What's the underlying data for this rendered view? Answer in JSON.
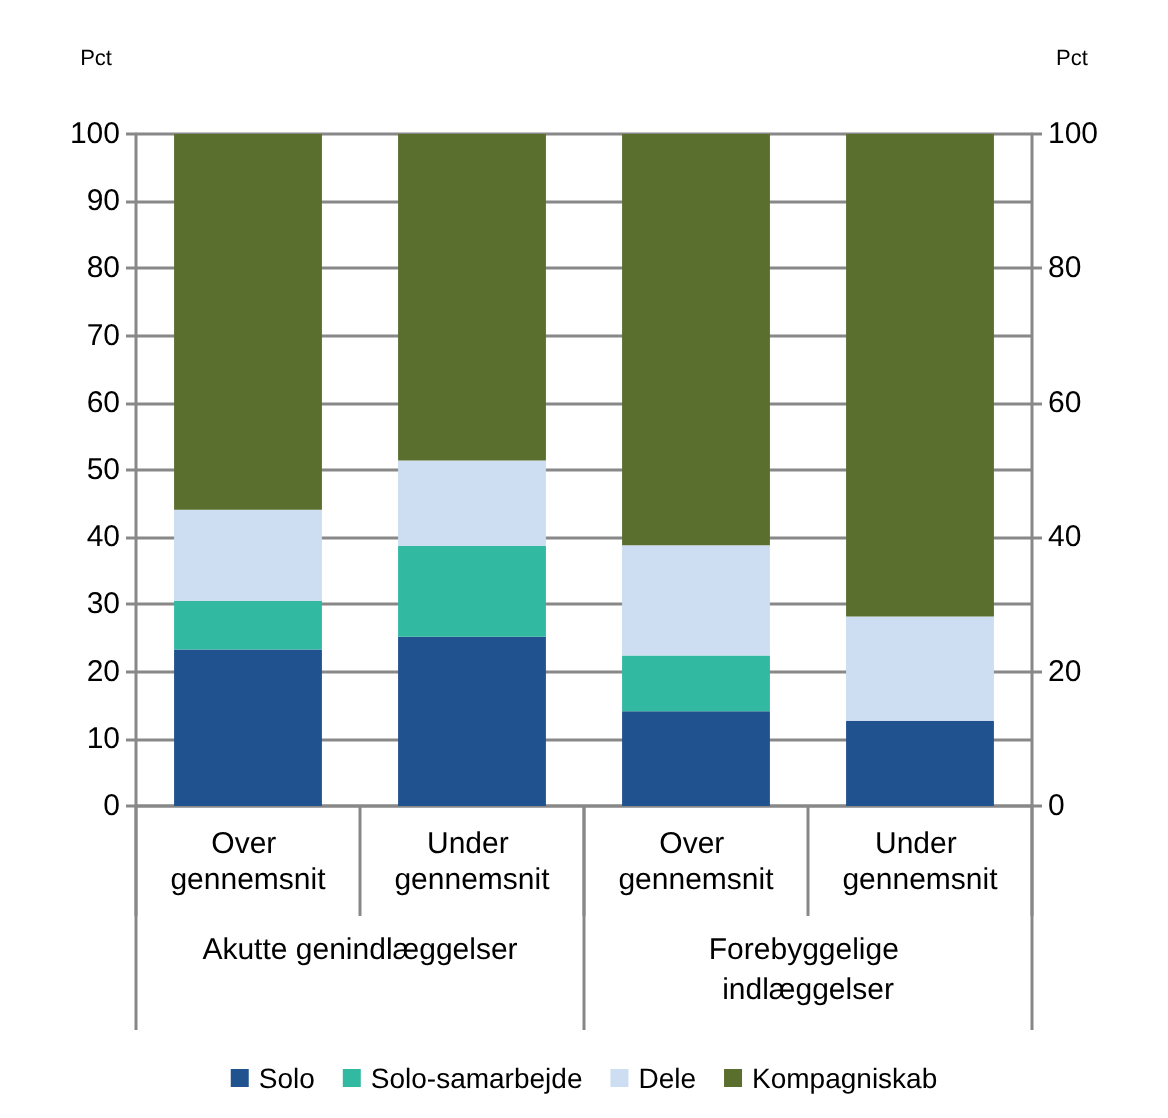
{
  "chart_data": {
    "type": "bar",
    "stacked": true,
    "categories": [
      "Over gennemsnit",
      "Under gennemsnit",
      "Over gennemsnit",
      "Under gennemsnit"
    ],
    "annotations": [
      "Akutte genindlæggelser",
      "Forebyggelige indlæggelser"
    ],
    "ylabel": "Pct",
    "y2label": "Pct",
    "series": [
      {
        "name": "Solo",
        "color": "#215290",
        "values": [
          23.3,
          25.2,
          14.1,
          12.7
        ]
      },
      {
        "name": "Solo-samarbejde",
        "color": "#31b9a2",
        "values": [
          7.2,
          13.5,
          8.3,
          0
        ]
      },
      {
        "name": "Dele",
        "color": "#cddef2",
        "values": [
          13.6,
          12.7,
          16.4,
          15.5
        ]
      },
      {
        "name": "Kompagniskab",
        "color": "#5a6e2e",
        "values": [
          55.9,
          48.6,
          61.2,
          71.8
        ]
      }
    ],
    "ylim": [
      0,
      100
    ],
    "yticks": [
      0,
      10,
      20,
      30,
      40,
      50,
      60,
      70,
      80,
      90,
      100
    ],
    "y2lim": [
      0,
      100
    ],
    "y2ticks": [
      0,
      20,
      40,
      60,
      80,
      100
    ],
    "grid": "y",
    "legend": "bottom"
  }
}
